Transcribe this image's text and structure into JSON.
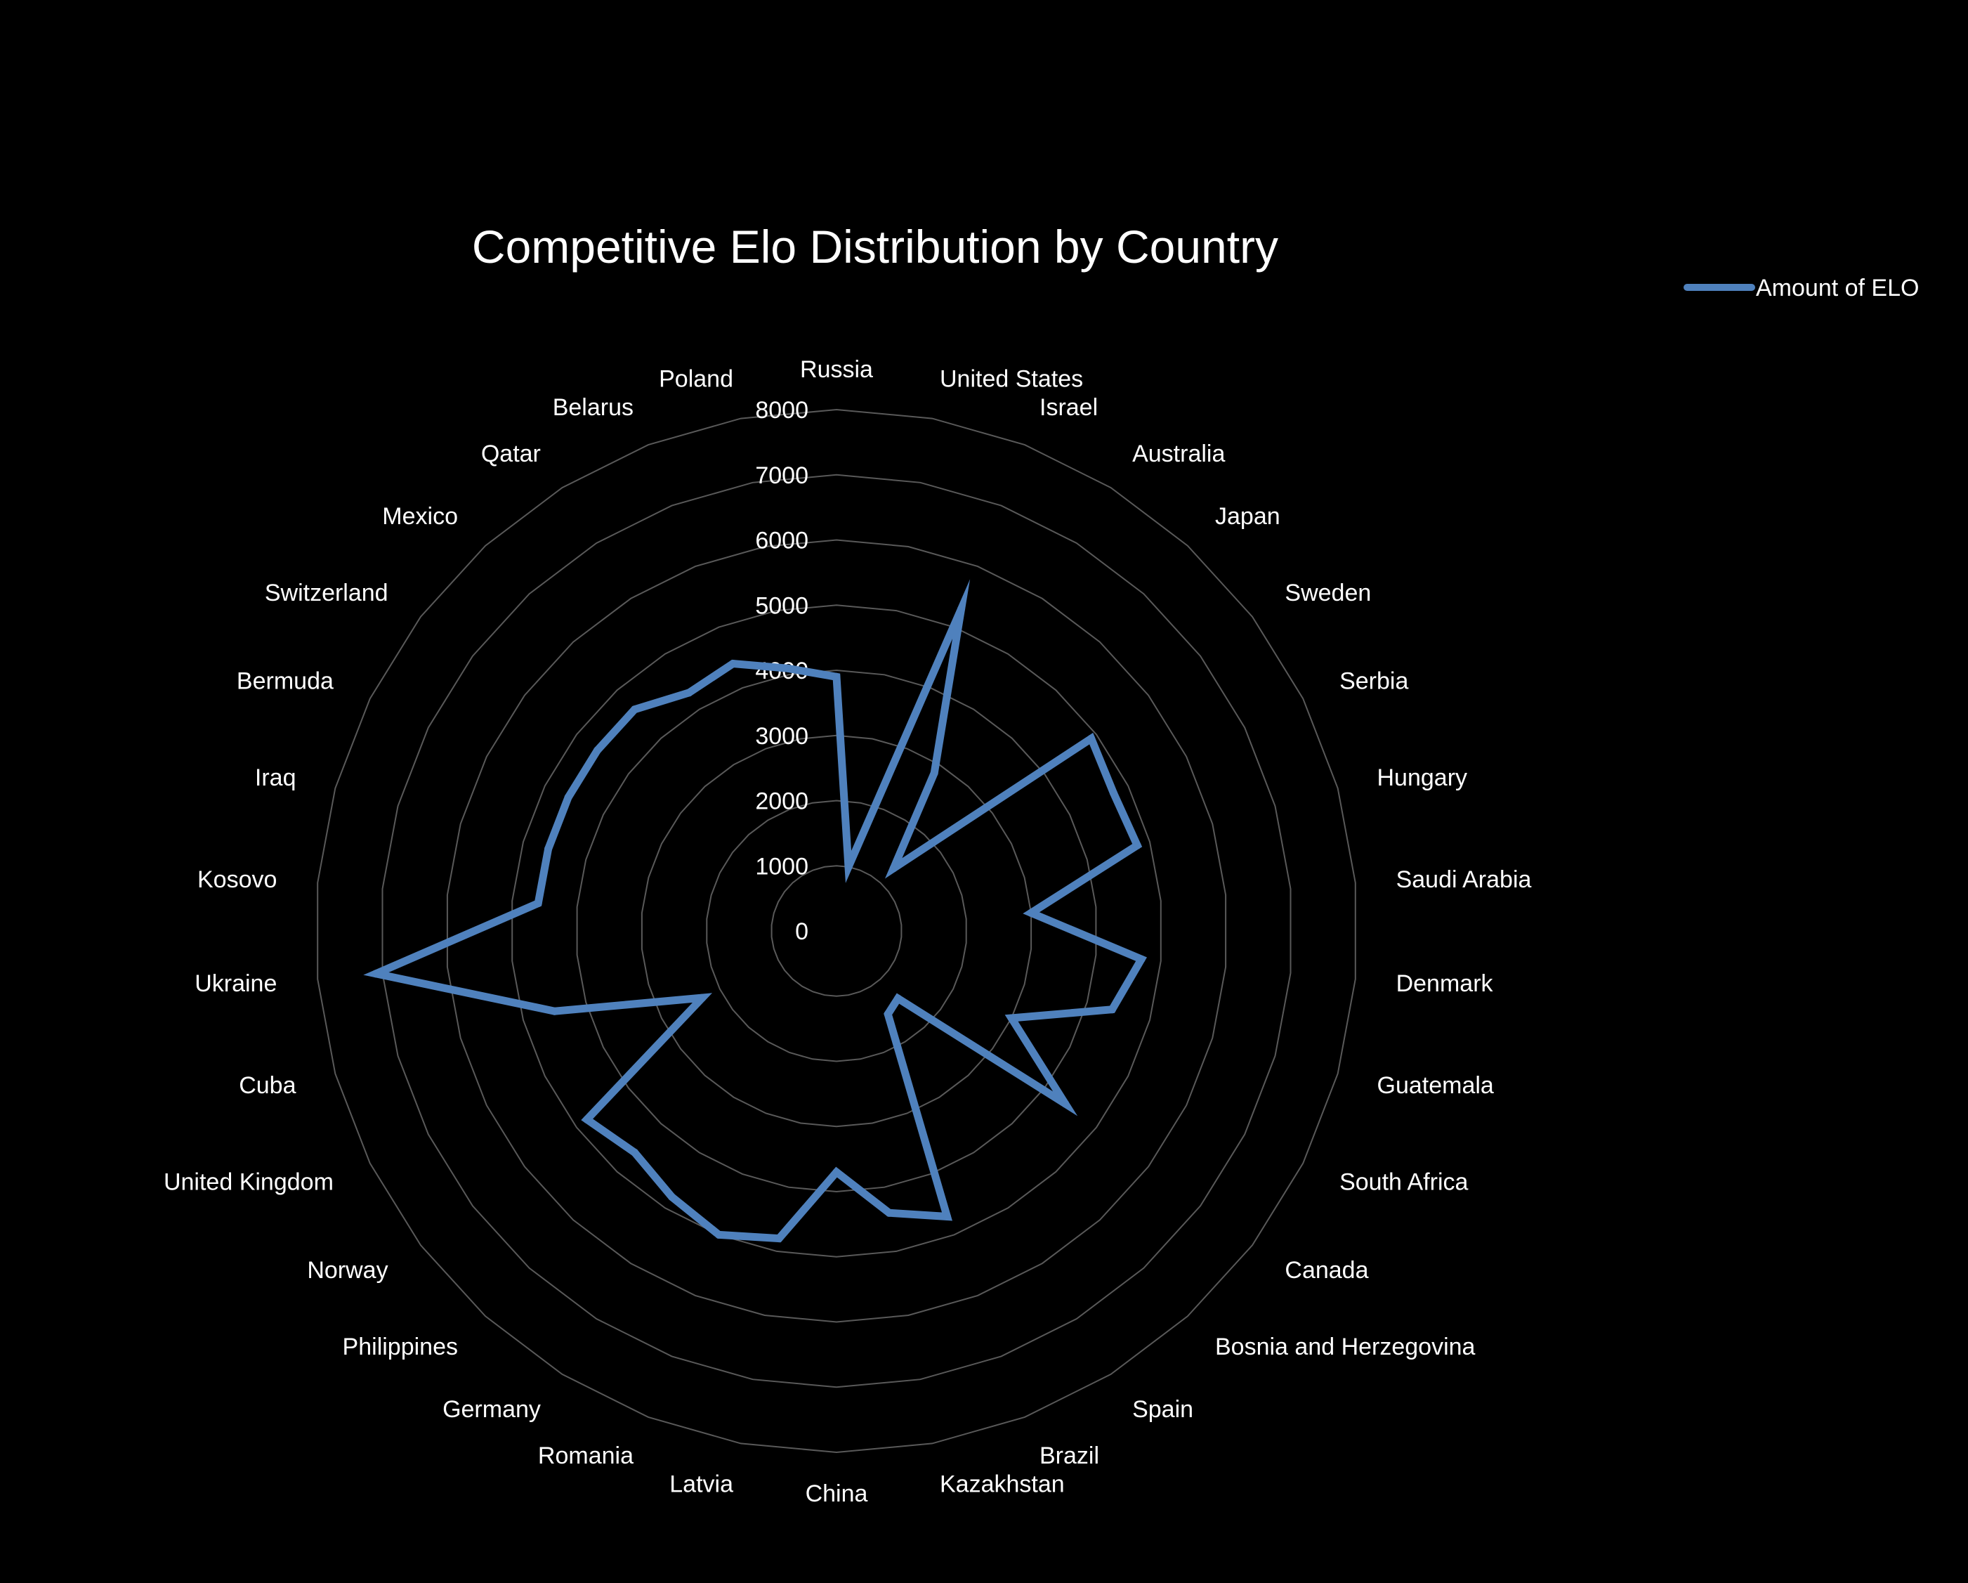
{
  "chart_data": {
    "type": "radar",
    "title": "Competitive Elo Distribution by Country",
    "categories": [
      "Russia",
      "United States",
      "Israel",
      "Australia",
      "Japan",
      "Sweden",
      "Serbia",
      "Hungary",
      "Saudi Arabia",
      "Denmark",
      "Guatemala",
      "South Africa",
      "Canada",
      "Bosnia and Herzegovina",
      "Spain",
      "Brazil",
      "Kazakhstan",
      "China",
      "Latvia",
      "Romania",
      "Germany",
      "Philippines",
      "Norway",
      "United Kingdom",
      "Cuba",
      "Ukraine",
      "Kosovo",
      "Iraq",
      "Bermuda",
      "Switzerland",
      "Mexico",
      "Qatar",
      "Belarus",
      "Poland"
    ],
    "series": [
      {
        "name": "Amount of ELO",
        "color": "#4f81bd",
        "values": [
          3900,
          1000,
          5300,
          2850,
          1300,
          4900,
          4750,
          4800,
          3000,
          4700,
          4400,
          3000,
          4400,
          1400,
          1500,
          4700,
          4400,
          3700,
          4800,
          5000,
          4800,
          4600,
          4800,
          2300,
          4500,
          7100,
          4600,
          4600,
          4600,
          4600,
          4600,
          4300,
          4400,
          4100
        ]
      }
    ],
    "rlim": [
      0,
      8000
    ],
    "ticks": [
      "0",
      "1000",
      "2000",
      "3000",
      "4000",
      "5000",
      "6000",
      "7000",
      "8000"
    ],
    "grid": true,
    "legend": "top-right",
    "colors": {
      "background": "#000000",
      "grid": "#595959",
      "text": "#ffffff"
    }
  }
}
